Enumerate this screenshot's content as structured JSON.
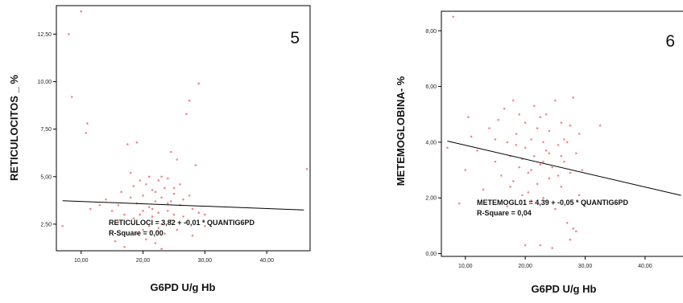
{
  "colors": {
    "points": "#f08a8a",
    "line": "#000000",
    "frame": "#000000"
  },
  "chart_data": [
    {
      "type": "scatter",
      "panel_label": "5",
      "xlabel": "G6PD U/g Hb",
      "ylabel": "RETICULOCITOS _ %",
      "xlim": [
        6,
        47
      ],
      "ylim": [
        1.1,
        14.0
      ],
      "x_ticks": [
        10,
        20,
        30,
        40
      ],
      "x_tick_labels": [
        "10,00",
        "20,00",
        "30,00",
        "40,00"
      ],
      "y_ticks": [
        2.5,
        5.0,
        7.5,
        10.0,
        12.5
      ],
      "y_tick_labels": [
        "2,50",
        "5,00",
        "7,50",
        "10,00",
        "12,50"
      ],
      "annotations": [
        "RETICULOCI = 3,82 + -0,01 * QUANTIG6PD",
        "R-Square = 0,00"
      ],
      "fit_line": {
        "intercept": 3.82,
        "slope": -0.0125,
        "x_range": [
          7,
          46
        ]
      },
      "series": [
        {
          "points": [
            [
              7.0,
              2.4
            ],
            [
              8.0,
              12.5
            ],
            [
              8.5,
              9.2
            ],
            [
              10.0,
              13.7
            ],
            [
              11.0,
              7.8
            ],
            [
              10.8,
              7.3
            ],
            [
              11.5,
              3.3
            ],
            [
              13.0,
              3.5
            ],
            [
              14.0,
              3.8
            ],
            [
              15.0,
              3.2
            ],
            [
              15.5,
              1.6
            ],
            [
              16.0,
              3.5
            ],
            [
              16.5,
              4.2
            ],
            [
              17.0,
              1.3
            ],
            [
              17.0,
              3.0
            ],
            [
              17.5,
              6.7
            ],
            [
              18.0,
              5.2
            ],
            [
              18.0,
              3.9
            ],
            [
              18.5,
              2.8
            ],
            [
              19.0,
              3.6
            ],
            [
              19.0,
              6.8
            ],
            [
              19.5,
              3.0
            ],
            [
              20.0,
              4.0
            ],
            [
              20.0,
              2.2
            ],
            [
              20.5,
              4.6
            ],
            [
              20.5,
              1.7
            ],
            [
              21.0,
              3.4
            ],
            [
              21.0,
              5.0
            ],
            [
              21.5,
              2.9
            ],
            [
              21.5,
              4.3
            ],
            [
              22.0,
              3.7
            ],
            [
              22.0,
              1.5
            ],
            [
              22.5,
              4.8
            ],
            [
              22.5,
              3.1
            ],
            [
              23.0,
              2.5
            ],
            [
              23.0,
              5.0
            ],
            [
              23.0,
              3.9
            ],
            [
              23.5,
              4.4
            ],
            [
              23.5,
              2.0
            ],
            [
              24.0,
              3.6
            ],
            [
              24.0,
              4.9
            ],
            [
              24.5,
              2.7
            ],
            [
              24.5,
              6.3
            ],
            [
              25.0,
              4.1
            ],
            [
              25.0,
              3.0
            ],
            [
              25.5,
              5.9
            ],
            [
              25.5,
              2.2
            ],
            [
              26.0,
              3.5
            ],
            [
              26.0,
              4.6
            ],
            [
              26.5,
              2.9
            ],
            [
              27.0,
              8.3
            ],
            [
              27.5,
              9.0
            ],
            [
              27.5,
              4.0
            ],
            [
              28.0,
              3.3
            ],
            [
              28.0,
              1.9
            ],
            [
              28.5,
              5.6
            ],
            [
              29.0,
              9.9
            ],
            [
              29.0,
              3.1
            ],
            [
              30.0,
              3.0
            ],
            [
              30.0,
              2.4
            ],
            [
              46.5,
              5.4
            ],
            [
              19.5,
              4.8
            ],
            [
              21.5,
              3.3
            ],
            [
              22.5,
              2.3
            ],
            [
              24.0,
              3.2
            ],
            [
              25.0,
              4.4
            ],
            [
              26.5,
              3.8
            ],
            [
              18.5,
              4.5
            ],
            [
              20.0,
              3.2
            ],
            [
              23.0,
              1.2
            ],
            [
              16.0,
              2.6
            ],
            [
              22.0,
              4.2
            ],
            [
              24.5,
              3.7
            ],
            [
              27.0,
              2.6
            ],
            [
              21.0,
              2.4
            ],
            [
              19.0,
              2.0
            ]
          ]
        }
      ]
    },
    {
      "type": "scatter",
      "panel_label": "6",
      "xlabel": "G6PD U/g Hb",
      "ylabel": "METEMOGLOBINA- %",
      "xlim": [
        6,
        47
      ],
      "ylim": [
        -0.1,
        8.7
      ],
      "x_ticks": [
        10,
        20,
        30,
        40
      ],
      "x_tick_labels": [
        "10,00",
        "20,00",
        "30,00",
        "40,00"
      ],
      "y_ticks": [
        0,
        2,
        4,
        6,
        8
      ],
      "y_tick_labels": [
        "0,00",
        "2,00",
        "4,00",
        "6,00",
        "8,00"
      ],
      "annotations": [
        "METEMOGL01 = 4,39 + -0,05 * QUANTIG6PD",
        "R-Square = 0,04"
      ],
      "fit_line": {
        "intercept": 4.39,
        "slope": -0.05,
        "x_range": [
          7,
          46
        ]
      },
      "series": [
        {
          "points": [
            [
              7.0,
              3.8
            ],
            [
              8.0,
              8.5
            ],
            [
              9.0,
              1.8
            ],
            [
              10.0,
              3.0
            ],
            [
              10.5,
              4.9
            ],
            [
              11.0,
              4.2
            ],
            [
              12.0,
              3.7
            ],
            [
              13.0,
              2.3
            ],
            [
              14.0,
              4.5
            ],
            [
              15.0,
              3.3
            ],
            [
              15.5,
              4.8
            ],
            [
              16.0,
              2.8
            ],
            [
              16.5,
              5.2
            ],
            [
              17.0,
              4.0
            ],
            [
              17.0,
              1.7
            ],
            [
              17.5,
              3.5
            ],
            [
              18.0,
              5.5
            ],
            [
              18.0,
              2.6
            ],
            [
              18.5,
              4.3
            ],
            [
              19.0,
              3.1
            ],
            [
              19.0,
              5.0
            ],
            [
              19.5,
              2.1
            ],
            [
              20.0,
              3.8
            ],
            [
              20.0,
              4.7
            ],
            [
              20.5,
              2.9
            ],
            [
              21.0,
              4.1
            ],
            [
              21.0,
              1.9
            ],
            [
              21.5,
              3.5
            ],
            [
              21.5,
              5.3
            ],
            [
              22.0,
              2.5
            ],
            [
              22.0,
              4.5
            ],
            [
              22.5,
              3.2
            ],
            [
              22.5,
              0.3
            ],
            [
              23.0,
              4.0
            ],
            [
              23.0,
              2.0
            ],
            [
              23.5,
              3.7
            ],
            [
              23.5,
              5.0
            ],
            [
              24.0,
              2.7
            ],
            [
              24.0,
              4.4
            ],
            [
              24.5,
              3.1
            ],
            [
              25.0,
              5.5
            ],
            [
              25.0,
              1.6
            ],
            [
              25.5,
              3.9
            ],
            [
              26.0,
              2.4
            ],
            [
              26.0,
              4.7
            ],
            [
              26.5,
              3.3
            ],
            [
              27.0,
              1.1
            ],
            [
              27.0,
              4.0
            ],
            [
              27.5,
              0.5
            ],
            [
              27.5,
              2.9
            ],
            [
              28.0,
              5.6
            ],
            [
              28.0,
              0.9
            ],
            [
              28.5,
              3.6
            ],
            [
              29.0,
              2.1
            ],
            [
              29.0,
              4.3
            ],
            [
              30.0,
              1.8
            ],
            [
              32.5,
              4.6
            ],
            [
              47.0,
              2.7
            ],
            [
              20.0,
              0.3
            ],
            [
              24.5,
              0.2
            ],
            [
              28.5,
              0.8
            ],
            [
              19.5,
              3.4
            ],
            [
              21.0,
              3.0
            ],
            [
              22.5,
              4.9
            ],
            [
              24.0,
              3.6
            ],
            [
              25.5,
              2.8
            ],
            [
              26.5,
              4.1
            ],
            [
              18.5,
              3.9
            ],
            [
              20.5,
              2.2
            ],
            [
              23.0,
              3.3
            ],
            [
              15.0,
              4.1
            ],
            [
              17.5,
              2.4
            ],
            [
              26.0,
              3.5
            ],
            [
              27.5,
              4.6
            ],
            [
              29.5,
              3.0
            ]
          ]
        }
      ]
    }
  ]
}
